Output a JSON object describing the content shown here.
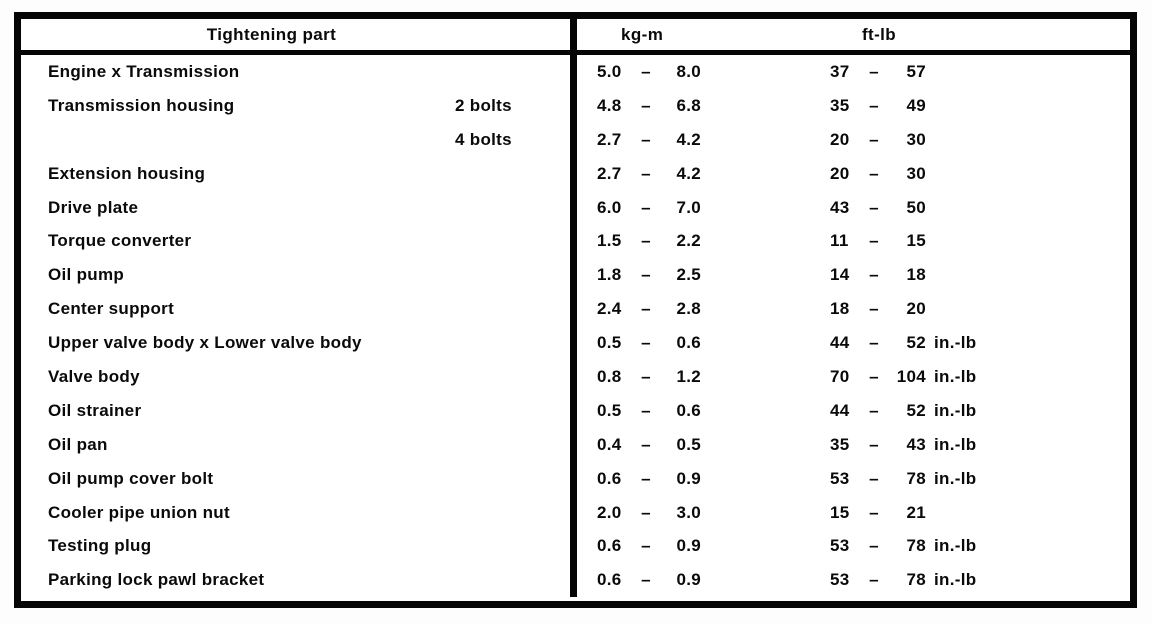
{
  "table": {
    "dash": "–",
    "headers": {
      "part": "Tightening part",
      "kgm": "kg-m",
      "ftlb": "ft-lb"
    },
    "rows": [
      {
        "part": "Engine x Transmission",
        "note": "",
        "kgm": {
          "min": "5.0",
          "max": "8.0"
        },
        "ftlb": {
          "min": "37",
          "max": "57",
          "unit": ""
        }
      },
      {
        "part": "Transmission housing",
        "note": "2 bolts",
        "kgm": {
          "min": "4.8",
          "max": "6.8"
        },
        "ftlb": {
          "min": "35",
          "max": "49",
          "unit": ""
        }
      },
      {
        "part": "",
        "note": "4 bolts",
        "kgm": {
          "min": "2.7",
          "max": "4.2"
        },
        "ftlb": {
          "min": "20",
          "max": "30",
          "unit": ""
        }
      },
      {
        "part": "Extension housing",
        "note": "",
        "kgm": {
          "min": "2.7",
          "max": "4.2"
        },
        "ftlb": {
          "min": "20",
          "max": "30",
          "unit": ""
        }
      },
      {
        "part": "Drive plate",
        "note": "",
        "kgm": {
          "min": "6.0",
          "max": "7.0"
        },
        "ftlb": {
          "min": "43",
          "max": "50",
          "unit": ""
        }
      },
      {
        "part": "Torque converter",
        "note": "",
        "kgm": {
          "min": "1.5",
          "max": "2.2"
        },
        "ftlb": {
          "min": "11",
          "max": "15",
          "unit": ""
        }
      },
      {
        "part": "Oil pump",
        "note": "",
        "kgm": {
          "min": "1.8",
          "max": "2.5"
        },
        "ftlb": {
          "min": "14",
          "max": "18",
          "unit": ""
        }
      },
      {
        "part": "Center support",
        "note": "",
        "kgm": {
          "min": "2.4",
          "max": "2.8"
        },
        "ftlb": {
          "min": "18",
          "max": "20",
          "unit": ""
        }
      },
      {
        "part": "Upper valve body x Lower valve body",
        "note": "",
        "kgm": {
          "min": "0.5",
          "max": "0.6"
        },
        "ftlb": {
          "min": "44",
          "max": "52",
          "unit": "in.-lb"
        }
      },
      {
        "part": "Valve body",
        "note": "",
        "kgm": {
          "min": "0.8",
          "max": "1.2"
        },
        "ftlb": {
          "min": "70",
          "max": "104",
          "unit": "in.-lb"
        }
      },
      {
        "part": "Oil strainer",
        "note": "",
        "kgm": {
          "min": "0.5",
          "max": "0.6"
        },
        "ftlb": {
          "min": "44",
          "max": "52",
          "unit": "in.-lb"
        }
      },
      {
        "part": "Oil pan",
        "note": "",
        "kgm": {
          "min": "0.4",
          "max": "0.5"
        },
        "ftlb": {
          "min": "35",
          "max": "43",
          "unit": "in.-lb"
        }
      },
      {
        "part": "Oil pump cover bolt",
        "note": "",
        "kgm": {
          "min": "0.6",
          "max": "0.9"
        },
        "ftlb": {
          "min": "53",
          "max": "78",
          "unit": "in.-lb"
        }
      },
      {
        "part": "Cooler pipe union nut",
        "note": "",
        "kgm": {
          "min": "2.0",
          "max": "3.0"
        },
        "ftlb": {
          "min": "15",
          "max": "21",
          "unit": ""
        }
      },
      {
        "part": "Testing plug",
        "note": "",
        "kgm": {
          "min": "0.6",
          "max": "0.9"
        },
        "ftlb": {
          "min": "53",
          "max": "78",
          "unit": "in.-lb"
        }
      },
      {
        "part": "Parking lock pawl bracket",
        "note": "",
        "kgm": {
          "min": "0.6",
          "max": "0.9"
        },
        "ftlb": {
          "min": "53",
          "max": "78",
          "unit": "in.-lb"
        }
      }
    ]
  }
}
